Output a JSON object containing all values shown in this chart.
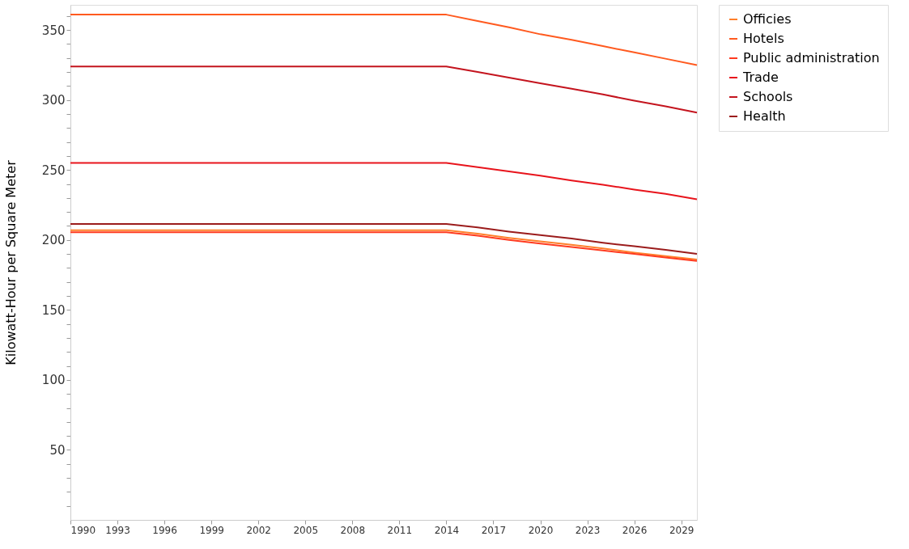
{
  "chart_data": {
    "type": "line",
    "ylabel": "Kilowatt-Hour per Square Meter",
    "x": [
      1990,
      2014,
      2016,
      2018,
      2020,
      2022,
      2024,
      2026,
      2028,
      2030
    ],
    "series": [
      {
        "name": "Officies",
        "color": "#ff7f2a",
        "values": [
          207,
          207,
          204.5,
          201.5,
          199,
          196.5,
          194,
          191,
          188.5,
          186
        ]
      },
      {
        "name": "Hotels",
        "color": "#ff5a1f",
        "values": [
          361,
          361,
          356.5,
          352,
          347,
          343,
          338.5,
          334,
          329.5,
          325
        ]
      },
      {
        "name": "Public administration",
        "color": "#ff3a1f",
        "values": [
          205.5,
          205.5,
          203,
          200,
          197.5,
          195,
          192.5,
          190,
          187.5,
          185
        ]
      },
      {
        "name": "Trade",
        "color": "#e8141c",
        "values": [
          255,
          255,
          252,
          249,
          246,
          242.5,
          239.5,
          236,
          233,
          229
        ]
      },
      {
        "name": "Schools",
        "color": "#c4141e",
        "values": [
          324,
          324,
          320,
          316,
          312,
          308,
          304,
          299.5,
          295.5,
          291
        ]
      },
      {
        "name": "Health",
        "color": "#9b1c1c",
        "values": [
          211.5,
          211.5,
          209,
          206,
          203.5,
          201,
          198,
          195.5,
          193,
          190
        ]
      }
    ],
    "xlim": [
      1990,
      2030
    ],
    "ylim": [
      0,
      368
    ],
    "xticks": [
      1990,
      1993,
      1996,
      1999,
      2002,
      2005,
      2008,
      2011,
      2014,
      2017,
      2020,
      2023,
      2026,
      2029
    ],
    "yticks": [
      {
        "value": 10,
        "label": null
      },
      {
        "value": 20,
        "label": null
      },
      {
        "value": 30,
        "label": null
      },
      {
        "value": 40,
        "label": null
      },
      50,
      {
        "value": 60,
        "label": null
      },
      {
        "value": 70,
        "label": null
      },
      {
        "value": 80,
        "label": null
      },
      {
        "value": 90,
        "label": null
      },
      100,
      {
        "value": 110,
        "label": null
      },
      {
        "value": 120,
        "label": null
      },
      {
        "value": 130,
        "label": null
      },
      {
        "value": 140,
        "label": null
      },
      150,
      {
        "value": 160,
        "label": null
      },
      {
        "value": 170,
        "label": null
      },
      {
        "value": 180,
        "label": null
      },
      {
        "value": 190,
        "label": null
      },
      200,
      {
        "value": 210,
        "label": null
      },
      {
        "value": 220,
        "label": null
      },
      {
        "value": 230,
        "label": null
      },
      {
        "value": 240,
        "label": null
      },
      250,
      {
        "value": 260,
        "label": null
      },
      {
        "value": 270,
        "label": null
      },
      {
        "value": 280,
        "label": null
      },
      {
        "value": 290,
        "label": null
      },
      300,
      {
        "value": 310,
        "label": null
      },
      {
        "value": 320,
        "label": null
      },
      {
        "value": 330,
        "label": null
      },
      {
        "value": 340,
        "label": null
      },
      350,
      {
        "value": 360,
        "label": null
      }
    ],
    "grid": false,
    "legend": "top right",
    "marker": "none",
    "line_style": "solid"
  }
}
